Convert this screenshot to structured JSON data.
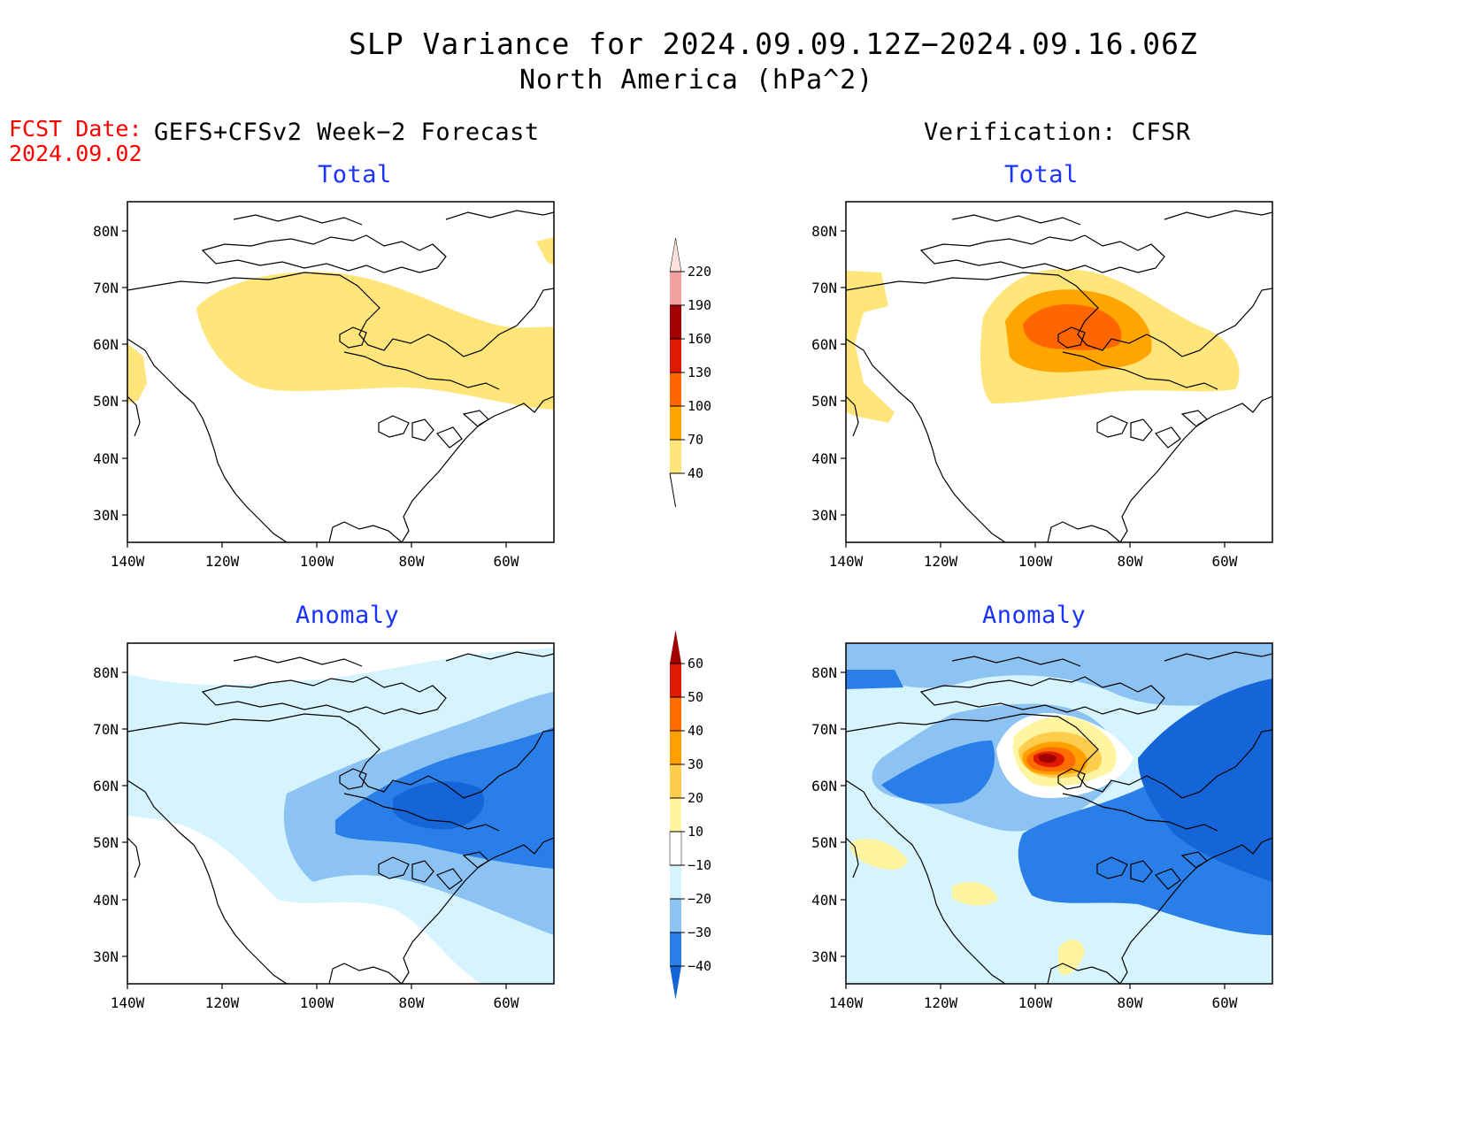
{
  "title": "SLP Variance for 2024.09.09.12Z−2024.09.16.06Z",
  "subtitle": "North America (hPa^2)",
  "fcst_date_label": "FCST Date:",
  "fcst_date_value": "2024.09.02",
  "forecast_header": "GEFS+CFSv2 Week−2 Forecast",
  "verification_header": "Verification: CFSR",
  "panel_titles": {
    "total": "Total",
    "anomaly": "Anomaly"
  },
  "lat_ticks": [
    "80N",
    "70N",
    "60N",
    "50N",
    "40N",
    "30N"
  ],
  "lon_ticks": [
    "140W",
    "120W",
    "100W",
    "80W",
    "60W"
  ],
  "total_colorbar": {
    "levels": [
      "40",
      "70",
      "100",
      "130",
      "160",
      "190",
      "220"
    ],
    "colors": [
      "#ffe57a",
      "#ffa500",
      "#ff6600",
      "#e01a00",
      "#a30000",
      "#f2a0a0",
      "#fde0dc"
    ]
  },
  "anomaly_colorbar": {
    "levels": [
      "−40",
      "−30",
      "−20",
      "−10",
      "10",
      "20",
      "30",
      "40",
      "50",
      "60"
    ],
    "colors": [
      "#1565d8",
      "#2a7ee8",
      "#8dc3f3",
      "#d6f4fd",
      "#ffffff",
      "#fff4a0",
      "#ffcd4d",
      "#ffa000",
      "#ff6d00",
      "#e01a00",
      "#a00000"
    ]
  }
}
